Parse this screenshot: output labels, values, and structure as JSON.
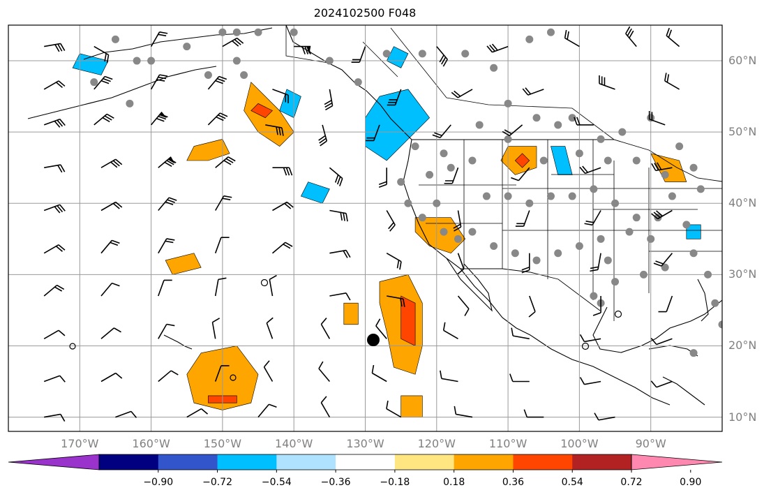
{
  "title": "2024102500 F048",
  "lat_labels": [
    "60°N",
    "50°N",
    "40°N",
    "30°N",
    "20°N",
    "10°N"
  ],
  "lon_labels": [
    "170°W",
    "160°W",
    "150°W",
    "140°W",
    "130°W",
    "120°W",
    "110°W",
    "100°W",
    "90°W"
  ],
  "colorbar": {
    "labels": [
      "−0.90",
      "−0.72",
      "−0.54",
      "−0.36",
      "−0.18",
      "0.18",
      "0.36",
      "0.54",
      "0.72",
      "0.90"
    ],
    "colors": [
      "#9933cc",
      "#000080",
      "#3355cc",
      "#00bfff",
      "#aee2ff",
      "#ffffff",
      "#ffe680",
      "#ffa500",
      "#ff4500",
      "#b22222",
      "#ff88b0"
    ]
  },
  "map": {
    "lon_range": [
      -180,
      -80
    ],
    "lat_range": [
      8,
      65
    ],
    "gridlines": true,
    "land_color": "#ffffff",
    "coastline_color": "#000000"
  },
  "stations": [
    [
      -165,
      63
    ],
    [
      -162,
      60
    ],
    [
      -168,
      57
    ],
    [
      -163,
      54
    ],
    [
      -155,
      62
    ],
    [
      -150,
      64
    ],
    [
      -148,
      60
    ],
    [
      -147,
      58
    ],
    [
      -145,
      64
    ],
    [
      -140,
      64
    ],
    [
      -135,
      60
    ],
    [
      -131,
      57
    ],
    [
      -127,
      61
    ],
    [
      -122,
      61
    ],
    [
      -116,
      61
    ],
    [
      -112,
      59
    ],
    [
      -107,
      63
    ],
    [
      -104,
      64
    ],
    [
      -110,
      54
    ],
    [
      -114,
      51
    ],
    [
      -110,
      49
    ],
    [
      -106,
      52
    ],
    [
      -103,
      51
    ],
    [
      -101,
      52
    ],
    [
      -97,
      49
    ],
    [
      -94,
      50
    ],
    [
      -90,
      52
    ],
    [
      -86,
      48
    ],
    [
      -84,
      45
    ],
    [
      -83,
      42
    ],
    [
      -87,
      41
    ],
    [
      -89,
      38
    ],
    [
      -92,
      38
    ],
    [
      -95,
      40
    ],
    [
      -98,
      42
    ],
    [
      -101,
      41
    ],
    [
      -104,
      41
    ],
    [
      -107,
      40
    ],
    [
      -110,
      41
    ],
    [
      -113,
      41
    ],
    [
      -115,
      46
    ],
    [
      -118,
      45
    ],
    [
      -121,
      44
    ],
    [
      -123,
      48
    ],
    [
      -119,
      47
    ],
    [
      -105,
      46
    ],
    [
      -100,
      47
    ],
    [
      -96,
      46
    ],
    [
      -92,
      46
    ],
    [
      -88,
      44
    ],
    [
      -85,
      37
    ],
    [
      -90,
      35
    ],
    [
      -93,
      36
    ],
    [
      -97,
      35
    ],
    [
      -100,
      34
    ],
    [
      -103,
      33
    ],
    [
      -106,
      32
    ],
    [
      -109,
      33
    ],
    [
      -112,
      34
    ],
    [
      -115,
      36
    ],
    [
      -117,
      35
    ],
    [
      -119,
      36
    ],
    [
      -122,
      38
    ],
    [
      -124,
      40
    ],
    [
      -96,
      32
    ],
    [
      -91,
      30
    ],
    [
      -88,
      31
    ],
    [
      -84,
      33
    ],
    [
      -82,
      30
    ],
    [
      -95,
      29
    ],
    [
      -98,
      27
    ],
    [
      -97,
      26
    ],
    [
      -81,
      26
    ],
    [
      -80,
      23
    ],
    [
      -84,
      19
    ],
    [
      -148,
      64
    ],
    [
      -152,
      58
    ],
    [
      -160,
      60
    ],
    [
      -125,
      43
    ],
    [
      -120,
      40
    ]
  ],
  "wind_barbs": [
    [
      -175,
      62,
      80,
      3
    ],
    [
      -168,
      62,
      120,
      2
    ],
    [
      -160,
      62,
      30,
      2
    ],
    [
      -150,
      62,
      60,
      3
    ],
    [
      -140,
      62,
      90,
      4
    ],
    [
      -130,
      62,
      200,
      2
    ],
    [
      -120,
      62,
      140,
      3
    ],
    [
      -110,
      62,
      250,
      3
    ],
    [
      -100,
      62,
      300,
      2
    ],
    [
      -92,
      62,
      320,
      3
    ],
    [
      -86,
      62,
      310,
      2
    ],
    [
      -175,
      56,
      60,
      2
    ],
    [
      -168,
      56,
      40,
      3
    ],
    [
      -160,
      56,
      30,
      3
    ],
    [
      -152,
      56,
      40,
      3
    ],
    [
      -143,
      56,
      110,
      2
    ],
    [
      -135,
      56,
      170,
      3
    ],
    [
      -125,
      56,
      200,
      3
    ],
    [
      -115,
      56,
      240,
      2
    ],
    [
      -105,
      56,
      250,
      2
    ],
    [
      -95,
      56,
      290,
      3
    ],
    [
      -86,
      56,
      300,
      2
    ],
    [
      -175,
      51,
      70,
      3
    ],
    [
      -168,
      51,
      50,
      3
    ],
    [
      -160,
      51,
      40,
      4
    ],
    [
      -152,
      51,
      45,
      3
    ],
    [
      -144,
      51,
      100,
      3
    ],
    [
      -136,
      51,
      165,
      3
    ],
    [
      -128,
      51,
      200,
      2
    ],
    [
      -118,
      51,
      220,
      2
    ],
    [
      -108,
      51,
      230,
      2
    ],
    [
      -98,
      51,
      270,
      2
    ],
    [
      -88,
      51,
      290,
      2
    ],
    [
      -175,
      45,
      80,
      2
    ],
    [
      -167,
      45,
      60,
      3
    ],
    [
      -159,
      45,
      50,
      4
    ],
    [
      -151,
      45,
      50,
      3
    ],
    [
      -143,
      45,
      90,
      3
    ],
    [
      -135,
      45,
      130,
      3
    ],
    [
      -127,
      45,
      180,
      2
    ],
    [
      -117,
      45,
      200,
      2
    ],
    [
      -107,
      45,
      220,
      1
    ],
    [
      -97,
      45,
      250,
      2
    ],
    [
      -87,
      45,
      260,
      3
    ],
    [
      -175,
      39,
      70,
      3
    ],
    [
      -167,
      39,
      60,
      2
    ],
    [
      -159,
      39,
      40,
      3
    ],
    [
      -151,
      39,
      30,
      2
    ],
    [
      -143,
      39,
      60,
      2
    ],
    [
      -135,
      39,
      100,
      3
    ],
    [
      -127,
      39,
      150,
      2
    ],
    [
      -117,
      39,
      170,
      2
    ],
    [
      -107,
      39,
      200,
      2
    ],
    [
      -97,
      39,
      210,
      2
    ],
    [
      -87,
      39,
      240,
      3
    ],
    [
      -175,
      33,
      60,
      2
    ],
    [
      -167,
      33,
      40,
      2
    ],
    [
      -159,
      33,
      30,
      2
    ],
    [
      -151,
      33,
      20,
      1
    ],
    [
      -143,
      33,
      50,
      2
    ],
    [
      -135,
      33,
      80,
      2
    ],
    [
      -127,
      33,
      120,
      2
    ],
    [
      -117,
      33,
      160,
      1
    ],
    [
      -107,
      33,
      180,
      2
    ],
    [
      -97,
      33,
      190,
      2
    ],
    [
      -87,
      33,
      220,
      2
    ],
    [
      -175,
      27,
      50,
      2
    ],
    [
      -167,
      27,
      40,
      1
    ],
    [
      -159,
      27,
      20,
      1
    ],
    [
      -151,
      27,
      10,
      1
    ],
    [
      -143,
      27,
      350,
      1
    ],
    [
      -135,
      27,
      80,
      1
    ],
    [
      -127,
      27,
      100,
      2
    ],
    [
      -117,
      27,
      140,
      1
    ],
    [
      -107,
      27,
      160,
      1
    ],
    [
      -97,
      27,
      180,
      1
    ],
    [
      -87,
      27,
      200,
      1
    ],
    [
      -175,
      21,
      60,
      1
    ],
    [
      -167,
      21,
      50,
      1
    ],
    [
      -159,
      21,
      30,
      1
    ],
    [
      -151,
      21,
      350,
      1
    ],
    [
      -143,
      21,
      340,
      1
    ],
    [
      -135,
      21,
      330,
      1
    ],
    [
      -127,
      21,
      320,
      1
    ],
    [
      -117,
      21,
      300,
      1
    ],
    [
      -107,
      21,
      280,
      1
    ],
    [
      -97,
      21,
      260,
      1
    ],
    [
      -87,
      21,
      250,
      1
    ],
    [
      -175,
      15,
      70,
      1
    ],
    [
      -167,
      15,
      60,
      1
    ],
    [
      -159,
      15,
      50,
      1
    ],
    [
      -151,
      15,
      20,
      1
    ],
    [
      -143,
      15,
      330,
      1
    ],
    [
      -135,
      15,
      320,
      1
    ],
    [
      -127,
      15,
      300,
      1
    ],
    [
      -117,
      15,
      280,
      1
    ],
    [
      -107,
      15,
      270,
      1
    ],
    [
      -97,
      15,
      260,
      1
    ],
    [
      -87,
      15,
      250,
      1
    ],
    [
      -175,
      10,
      80,
      1
    ],
    [
      -165,
      10,
      70,
      1
    ],
    [
      -155,
      10,
      60,
      1
    ],
    [
      -145,
      10,
      40,
      1
    ],
    [
      -135,
      10,
      330,
      1
    ],
    [
      -125,
      10,
      300,
      1
    ],
    [
      -115,
      10,
      280,
      1
    ],
    [
      -105,
      10,
      270,
      1
    ],
    [
      -95,
      10,
      260,
      1
    ]
  ],
  "contour_patches": [
    {
      "color": "#ffa500",
      "pts": [
        [
          -146,
          57
        ],
        [
          -144,
          55
        ],
        [
          -142,
          53
        ],
        [
          -140,
          50
        ],
        [
          -142,
          48
        ],
        [
          -145,
          50
        ],
        [
          -147,
          53
        ]
      ]
    },
    {
      "color": "#ffa500",
      "pts": [
        [
          -154,
          48
        ],
        [
          -150,
          49
        ],
        [
          -149,
          47
        ],
        [
          -152,
          46
        ],
        [
          -155,
          46
        ]
      ]
    },
    {
      "color": "#ff4500",
      "pts": [
        [
          -145,
          54
        ],
        [
          -143,
          53
        ],
        [
          -144,
          52
        ],
        [
          -146,
          53
        ]
      ]
    },
    {
      "color": "#00bfff",
      "pts": [
        [
          -141,
          56
        ],
        [
          -139,
          55
        ],
        [
          -140,
          52
        ],
        [
          -142,
          53
        ]
      ]
    },
    {
      "color": "#00bfff",
      "pts": [
        [
          -128,
          55
        ],
        [
          -124,
          56
        ],
        [
          -121,
          52
        ],
        [
          -124,
          49
        ],
        [
          -127,
          46
        ],
        [
          -130,
          48
        ],
        [
          -130,
          52
        ]
      ]
    },
    {
      "color": "#00bfff",
      "pts": [
        [
          -126,
          62
        ],
        [
          -124,
          61
        ],
        [
          -125,
          59
        ],
        [
          -127,
          60
        ]
      ]
    },
    {
      "color": "#00bfff",
      "pts": [
        [
          -138,
          43
        ],
        [
          -135,
          42
        ],
        [
          -136,
          40
        ],
        [
          -139,
          41
        ]
      ]
    },
    {
      "color": "#00bfff",
      "pts": [
        [
          -170,
          61
        ],
        [
          -166,
          60
        ],
        [
          -167,
          58
        ],
        [
          -171,
          59
        ]
      ]
    },
    {
      "color": "#ffa500",
      "pts": [
        [
          -123,
          38
        ],
        [
          -118,
          38
        ],
        [
          -116,
          35
        ],
        [
          -118,
          33
        ],
        [
          -121,
          34
        ],
        [
          -123,
          36
        ]
      ]
    },
    {
      "color": "#ffa500",
      "pts": [
        [
          -110,
          48
        ],
        [
          -106,
          48
        ],
        [
          -106,
          45
        ],
        [
          -109,
          44
        ],
        [
          -111,
          46
        ]
      ]
    },
    {
      "color": "#ff4500",
      "pts": [
        [
          -108,
          47
        ],
        [
          -107,
          46
        ],
        [
          -108,
          45
        ],
        [
          -109,
          46
        ]
      ]
    },
    {
      "color": "#00bfff",
      "pts": [
        [
          -104,
          48
        ],
        [
          -102,
          48
        ],
        [
          -101,
          44
        ],
        [
          -103,
          44
        ]
      ]
    },
    {
      "color": "#ffa500",
      "pts": [
        [
          -128,
          29
        ],
        [
          -124,
          30
        ],
        [
          -122,
          26
        ],
        [
          -122,
          20
        ],
        [
          -123,
          16
        ],
        [
          -126,
          17
        ],
        [
          -127,
          22
        ],
        [
          -128,
          26
        ]
      ]
    },
    {
      "color": "#ff4500",
      "pts": [
        [
          -125,
          27
        ],
        [
          -123,
          26
        ],
        [
          -123,
          20
        ],
        [
          -125,
          21
        ]
      ]
    },
    {
      "color": "#ffa500",
      "pts": [
        [
          -133,
          26
        ],
        [
          -131,
          26
        ],
        [
          -131,
          23
        ],
        [
          -133,
          23
        ]
      ]
    },
    {
      "color": "#ffa500",
      "pts": [
        [
          -153,
          19
        ],
        [
          -148,
          20
        ],
        [
          -145,
          16
        ],
        [
          -146,
          12
        ],
        [
          -150,
          11
        ],
        [
          -154,
          12
        ],
        [
          -155,
          16
        ]
      ]
    },
    {
      "color": "#ff4500",
      "pts": [
        [
          -152,
          13
        ],
        [
          -148,
          13
        ],
        [
          -148,
          12
        ],
        [
          -152,
          12
        ]
      ]
    },
    {
      "color": "#ffa500",
      "pts": [
        [
          -158,
          32
        ],
        [
          -154,
          33
        ],
        [
          -153,
          31
        ],
        [
          -157,
          30
        ]
      ]
    },
    {
      "color": "#ffa500",
      "pts": [
        [
          -125,
          13
        ],
        [
          -122,
          13
        ],
        [
          -122,
          10
        ],
        [
          -125,
          10
        ]
      ]
    },
    {
      "color": "#ffa500",
      "pts": [
        [
          -90,
          47
        ],
        [
          -86,
          46
        ],
        [
          -85,
          43
        ],
        [
          -88,
          43
        ]
      ]
    },
    {
      "color": "#00bfff",
      "pts": [
        [
          -85,
          37
        ],
        [
          -83,
          37
        ],
        [
          -83,
          35
        ],
        [
          -85,
          35
        ]
      ]
    }
  ]
}
